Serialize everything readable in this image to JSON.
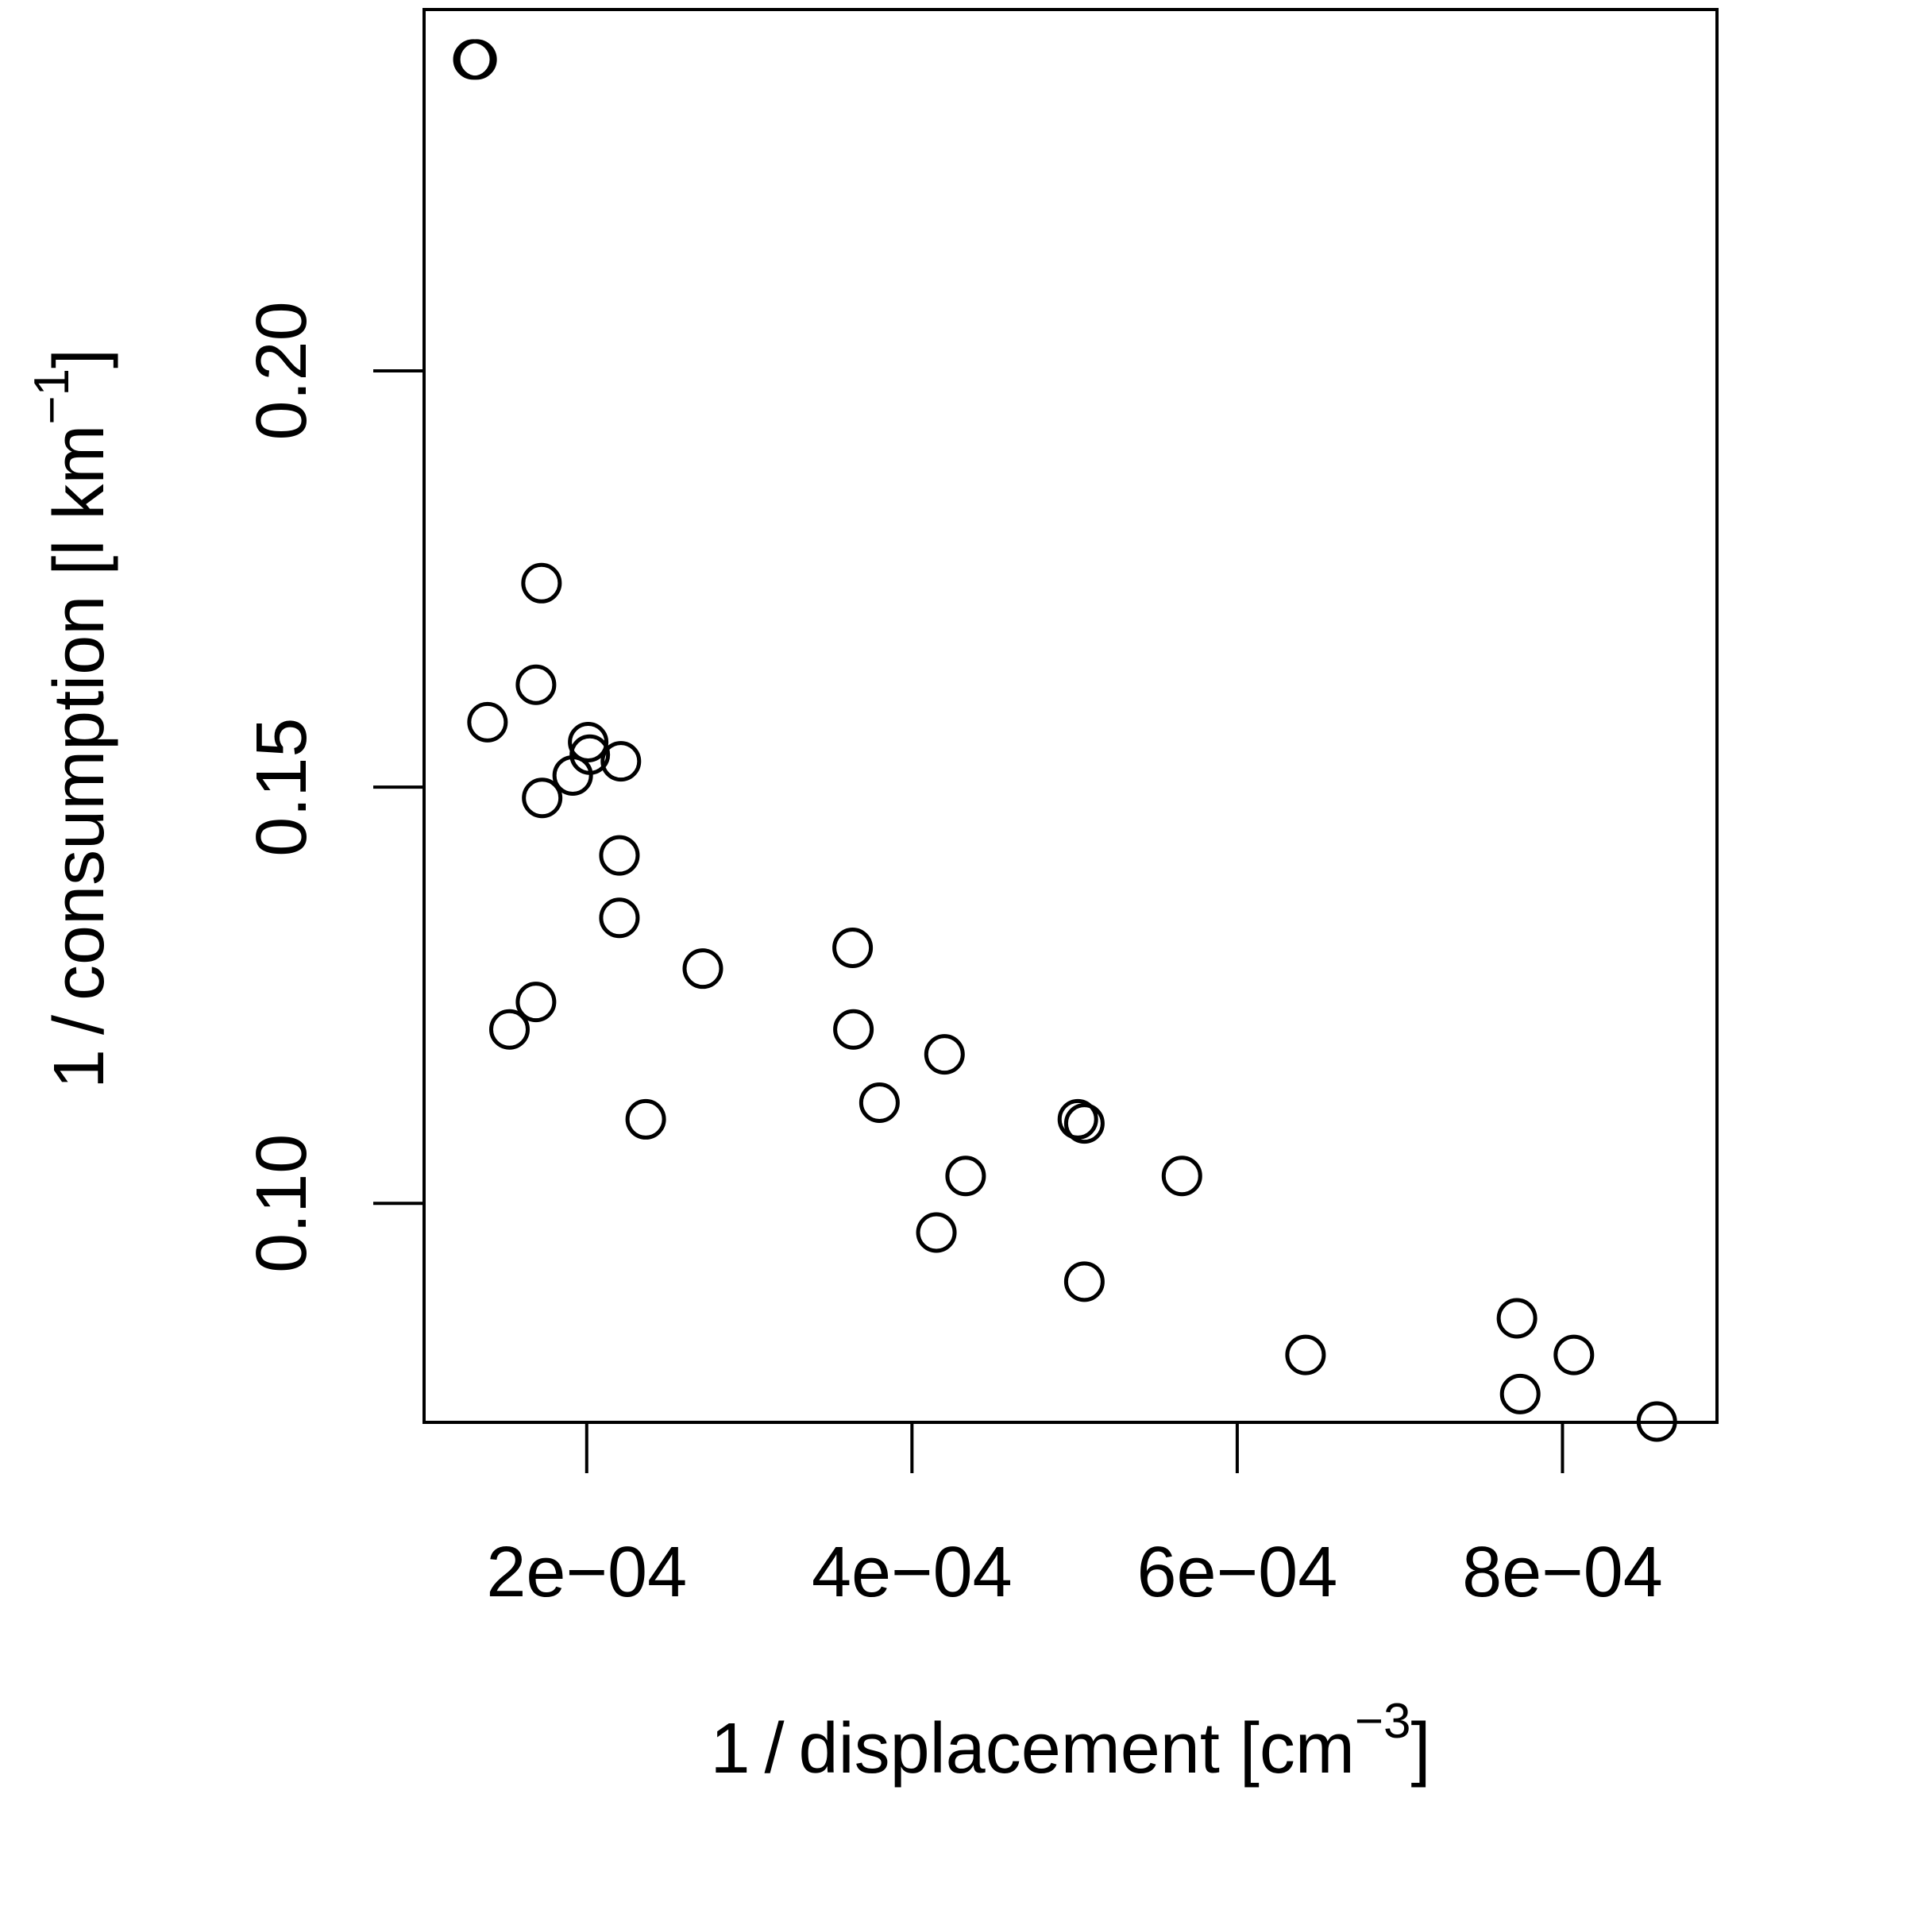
{
  "chart_data": {
    "type": "scatter",
    "xlabel": {
      "main": "1 / displacement [cm",
      "superscript": "−3",
      "close": "]"
    },
    "ylabel": {
      "main": "1 / consumption [l km",
      "superscript": "−1",
      "close": "]"
    },
    "xlim": [
      0.0001,
      0.000895
    ],
    "ylim": [
      0.0737,
      0.2434
    ],
    "x_ticks": [
      {
        "value": 0.0002,
        "label": "2e−04"
      },
      {
        "value": 0.0004,
        "label": "4e−04"
      },
      {
        "value": 0.0006,
        "label": "6e−04"
      },
      {
        "value": 0.0008,
        "label": "8e−04"
      }
    ],
    "y_ticks": [
      {
        "value": 0.1,
        "label": "0.10"
      },
      {
        "value": 0.15,
        "label": "0.15"
      },
      {
        "value": 0.2,
        "label": "0.20"
      }
    ],
    "grid": false,
    "marker": "open-circle",
    "points": [
      {
        "x": 0.0001303,
        "y": 0.2374
      },
      {
        "x": 0.0001323,
        "y": 0.2374
      },
      {
        "x": 0.000139,
        "y": 0.1578
      },
      {
        "x": 0.0001525,
        "y": 0.1209
      },
      {
        "x": 0.0001688,
        "y": 0.1623
      },
      {
        "x": 0.0001688,
        "y": 0.1242
      },
      {
        "x": 0.0001722,
        "y": 0.1745
      },
      {
        "x": 0.0001726,
        "y": 0.1487
      },
      {
        "x": 0.0001914,
        "y": 0.1514
      },
      {
        "x": 0.0002009,
        "y": 0.1554
      },
      {
        "x": 0.0002019,
        "y": 0.1539
      },
      {
        "x": 0.000221,
        "y": 0.1531
      },
      {
        "x": 0.0002201,
        "y": 0.1418
      },
      {
        "x": 0.0002201,
        "y": 0.1343
      },
      {
        "x": 0.0002363,
        "y": 0.1101
      },
      {
        "x": 0.0002714,
        "y": 0.1282
      },
      {
        "x": 0.0003635,
        "y": 0.1307
      },
      {
        "x": 0.000364,
        "y": 0.1209
      },
      {
        "x": 0.00038,
        "y": 0.1121
      },
      {
        "x": 0.000415,
        "y": 0.0965
      },
      {
        "x": 0.00042,
        "y": 0.1179
      },
      {
        "x": 0.000433,
        "y": 0.1033
      },
      {
        "x": 0.000502,
        "y": 0.1101
      },
      {
        "x": 0.000506,
        "y": 0.1096
      },
      {
        "x": 0.000506,
        "y": 0.0906
      },
      {
        "x": 0.000566,
        "y": 0.1033
      },
      {
        "x": 0.000642,
        "y": 0.0818
      },
      {
        "x": 0.000772,
        "y": 0.0862
      },
      {
        "x": 0.000774,
        "y": 0.0771
      },
      {
        "x": 0.000807,
        "y": 0.0818
      },
      {
        "x": 0.000858,
        "y": 0.0738
      }
    ]
  }
}
